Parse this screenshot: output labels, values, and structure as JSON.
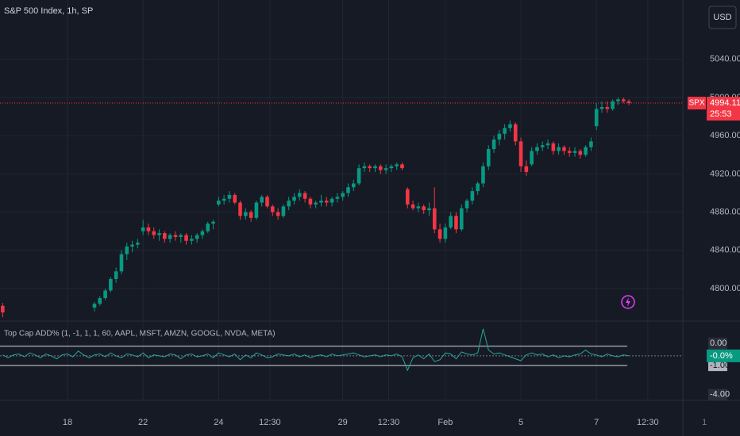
{
  "chart_data": [
    {
      "type": "candlestick",
      "title": "S&P 500 Index, 1h, SP",
      "currency": "USD",
      "up_color": "#089981",
      "down_color": "#f23645",
      "grid": true,
      "ylim": [
        4766,
        5102
      ],
      "yticks": [
        {
          "value": 4800,
          "label": "4800.00"
        },
        {
          "value": 4840,
          "label": "4840.00"
        },
        {
          "value": 4880,
          "label": "4880.00"
        },
        {
          "value": 4920,
          "label": "4920.00"
        },
        {
          "value": 4960,
          "label": "4960.00"
        },
        {
          "value": 5000,
          "label": "5000.00"
        },
        {
          "value": 5040,
          "label": "5040.00"
        }
      ],
      "xlim": [
        -0.5,
        126
      ],
      "xticks": [
        {
          "value": 12,
          "label": "18"
        },
        {
          "value": 26,
          "label": "22"
        },
        {
          "value": 40,
          "label": "24"
        },
        {
          "value": 49.5,
          "label": "12:30"
        },
        {
          "value": 63,
          "label": "29"
        },
        {
          "value": 71.5,
          "label": "12:30"
        },
        {
          "value": 82,
          "label": "Feb"
        },
        {
          "value": 96,
          "label": "5"
        },
        {
          "value": 110,
          "label": "7"
        },
        {
          "value": 119.5,
          "label": "12:30"
        },
        {
          "value": 130,
          "label": "1"
        }
      ],
      "price_label": {
        "symbol": "SPX",
        "price": 4994.11,
        "countdown": "25:53"
      },
      "values": [
        [
          4782,
          4785,
          4770,
          4775
        ],
        null,
        null,
        null,
        null,
        null,
        null,
        null,
        null,
        null,
        null,
        null,
        null,
        null,
        null,
        null,
        null,
        [
          4780,
          4786,
          4776,
          4784
        ],
        [
          4784,
          4792,
          4782,
          4790
        ],
        [
          4790,
          4800,
          4788,
          4798
        ],
        [
          4798,
          4812,
          4796,
          4810
        ],
        [
          4810,
          4822,
          4806,
          4818
        ],
        [
          4818,
          4840,
          4815,
          4836
        ],
        [
          4836,
          4848,
          4830,
          4844
        ],
        [
          4844,
          4850,
          4838,
          4846
        ],
        [
          4846,
          4852,
          4842,
          4848
        ],
        [
          4860,
          4872,
          4856,
          4864
        ],
        [
          4864,
          4868,
          4856,
          4860
        ],
        [
          4860,
          4864,
          4852,
          4856
        ],
        [
          4856,
          4862,
          4850,
          4858
        ],
        [
          4858,
          4860,
          4848,
          4852
        ],
        [
          4852,
          4858,
          4848,
          4856
        ],
        [
          4856,
          4860,
          4850,
          4854
        ],
        [
          4854,
          4858,
          4848,
          4856
        ],
        [
          4856,
          4858,
          4846,
          4850
        ],
        [
          4850,
          4856,
          4846,
          4852
        ],
        [
          4852,
          4858,
          4848,
          4856
        ],
        [
          4856,
          4862,
          4852,
          4860
        ],
        [
          4860,
          4870,
          4858,
          4868
        ],
        [
          4868,
          4872,
          4862,
          4870
        ],
        [
          4888,
          4896,
          4886,
          4892
        ],
        [
          4892,
          4898,
          4888,
          4894
        ],
        [
          4894,
          4902,
          4890,
          4898
        ],
        [
          4898,
          4900,
          4888,
          4890
        ],
        [
          4890,
          4892,
          4872,
          4876
        ],
        [
          4876,
          4884,
          4872,
          4880
        ],
        [
          4880,
          4882,
          4870,
          4874
        ],
        [
          4874,
          4892,
          4872,
          4890
        ],
        [
          4890,
          4898,
          4886,
          4896
        ],
        [
          4896,
          4898,
          4884,
          4886
        ],
        [
          4886,
          4888,
          4876,
          4880
        ],
        [
          4880,
          4884,
          4872,
          4876
        ],
        [
          4876,
          4888,
          4874,
          4886
        ],
        [
          4886,
          4896,
          4882,
          4892
        ],
        [
          4892,
          4900,
          4888,
          4896
        ],
        [
          4896,
          4904,
          4892,
          4900
        ],
        [
          4900,
          4902,
          4890,
          4894
        ],
        [
          4894,
          4896,
          4884,
          4888
        ],
        [
          4888,
          4892,
          4884,
          4890
        ],
        [
          4890,
          4898,
          4886,
          4892
        ],
        [
          4892,
          4896,
          4886,
          4890
        ],
        [
          4890,
          4896,
          4886,
          4894
        ],
        [
          4894,
          4900,
          4890,
          4896
        ],
        [
          4896,
          4902,
          4892,
          4900
        ],
        [
          4900,
          4910,
          4896,
          4906
        ],
        [
          4906,
          4914,
          4902,
          4910
        ],
        [
          4910,
          4930,
          4908,
          4926
        ],
        [
          4926,
          4932,
          4922,
          4928
        ],
        [
          4928,
          4930,
          4922,
          4926
        ],
        [
          4926,
          4930,
          4922,
          4928
        ],
        [
          4928,
          4930,
          4920,
          4924
        ],
        [
          4924,
          4930,
          4920,
          4926
        ],
        [
          4926,
          4930,
          4922,
          4928
        ],
        [
          4928,
          4932,
          4924,
          4930
        ],
        [
          4930,
          4932,
          4924,
          4926
        ],
        [
          4904,
          4906,
          4884,
          4888
        ],
        [
          4888,
          4892,
          4882,
          4884
        ],
        [
          4884,
          4890,
          4880,
          4886
        ],
        [
          4886,
          4888,
          4878,
          4882
        ],
        [
          4882,
          4890,
          4876,
          4884
        ],
        [
          4884,
          4906,
          4858,
          4862
        ],
        [
          4862,
          4868,
          4848,
          4852
        ],
        [
          4852,
          4868,
          4848,
          4864
        ],
        [
          4864,
          4880,
          4862,
          4876
        ],
        [
          4876,
          4880,
          4858,
          4862
        ],
        [
          4862,
          4888,
          4860,
          4884
        ],
        [
          4884,
          4894,
          4880,
          4892
        ],
        [
          4892,
          4906,
          4888,
          4902
        ],
        [
          4902,
          4912,
          4898,
          4910
        ],
        [
          4910,
          4932,
          4906,
          4928
        ],
        [
          4928,
          4950,
          4924,
          4946
        ],
        [
          4946,
          4960,
          4942,
          4956
        ],
        [
          4956,
          4966,
          4950,
          4962
        ],
        [
          4962,
          4972,
          4956,
          4968
        ],
        [
          4968,
          4976,
          4964,
          4972
        ],
        [
          4972,
          4974,
          4950,
          4954
        ],
        [
          4954,
          4958,
          4922,
          4928
        ],
        [
          4928,
          4934,
          4918,
          4922
        ],
        [
          4930,
          4948,
          4928,
          4944
        ],
        [
          4944,
          4952,
          4940,
          4948
        ],
        [
          4948,
          4954,
          4944,
          4950
        ],
        [
          4950,
          4956,
          4946,
          4952
        ],
        [
          4952,
          4954,
          4940,
          4944
        ],
        [
          4944,
          4952,
          4940,
          4948
        ],
        [
          4948,
          4950,
          4940,
          4944
        ],
        [
          4944,
          4948,
          4938,
          4942
        ],
        [
          4942,
          4948,
          4938,
          4944
        ],
        [
          4944,
          4946,
          4936,
          4940
        ],
        [
          4940,
          4950,
          4938,
          4948
        ],
        [
          4948,
          4958,
          4944,
          4954
        ],
        [
          4970,
          4994,
          4966,
          4988
        ],
        [
          4988,
          4996,
          4984,
          4990
        ],
        [
          4990,
          4996,
          4984,
          4988
        ],
        [
          4988,
          4998,
          4986,
          4996
        ],
        [
          4996,
          5000,
          4992,
          4998
        ],
        [
          4998,
          5000,
          4994,
          4996
        ],
        [
          4996,
          4998,
          4992,
          4994.11
        ]
      ]
    },
    {
      "type": "line",
      "title": "Top Cap ADD% (1, -1, 1, 1, 60, AAPL, MSFT, AMZN, GOOGL, NVDA, META)",
      "color": "#26a69a",
      "ylim": [
        -4.6,
        3.6
      ],
      "yticks": [
        {
          "value": 1,
          "label": "1.00"
        },
        {
          "value": 0,
          "label": "0.00"
        },
        {
          "value": -1,
          "label": "-1.00"
        },
        {
          "value": -4,
          "label": "-4.00"
        }
      ],
      "last_value_label": "-0.0%",
      "values": [
        0.1,
        -0.2,
        0.1,
        0.2,
        -0.1,
        0.3,
        0.1,
        -0.2,
        0.2,
        0.0,
        -0.3,
        0.1,
        0.2,
        -0.1,
        0.5,
        0.1,
        -0.2,
        0.1,
        0.2,
        -0.1,
        0.3,
        0.0,
        -0.2,
        0.2,
        0.1,
        -0.1,
        0.3,
        -0.2,
        0.1,
        0.0,
        -0.1,
        0.2,
        0.1,
        -0.3,
        0.1,
        0.2,
        -0.1,
        0.0,
        0.2,
        -0.2,
        0.3,
        0.1,
        -0.1,
        0.2,
        -0.4,
        0.1,
        -0.2,
        0.3,
        0.1,
        -0.2,
        -0.1,
        0.2,
        0.1,
        0.0,
        0.2,
        -0.1,
        0.1,
        -0.2,
        0.0,
        0.1,
        -0.1,
        0.2,
        0.0,
        0.1,
        0.2,
        0.3,
        0.1,
        -0.1,
        0.0,
        0.1,
        -0.1,
        0.1,
        0.0,
        0.2,
        -0.1,
        -1.5,
        -0.2,
        0.1,
        -0.3,
        0.2,
        -0.6,
        -0.4,
        0.3,
        0.2,
        -0.3,
        0.4,
        0.2,
        0.1,
        0.3,
        2.8,
        0.6,
        0.2,
        0.3,
        0.1,
        -0.1,
        -0.3,
        -0.5,
        0.1,
        0.3,
        0.1,
        0.2,
        -0.1,
        0.1,
        -0.2,
        0.0,
        -0.1,
        0.1,
        0.2,
        0.6,
        0.2,
        0.1,
        -0.1,
        0.2,
        0.0,
        -0.1,
        0.1,
        0.0
      ]
    }
  ]
}
